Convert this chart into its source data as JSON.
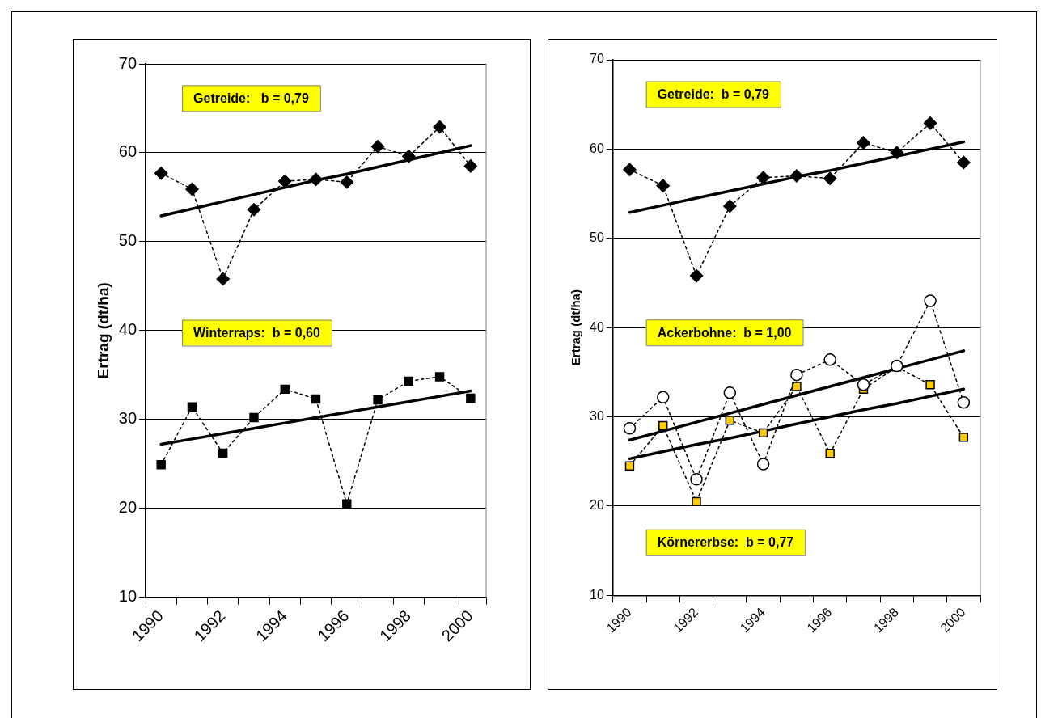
{
  "chart_data": [
    {
      "type": "line",
      "ylabel": "Ertrag (dt/ha)",
      "categories": [
        "1990",
        null,
        "1992",
        null,
        "1994",
        null,
        "1996",
        null,
        "1998",
        null,
        "2000"
      ],
      "ylim": [
        10,
        70
      ],
      "yticks": [
        10,
        20,
        30,
        40,
        50,
        60,
        70
      ],
      "grid": "y",
      "series": [
        {
          "color": "#000000",
          "marker": "diamond",
          "line_style": "dotted",
          "values": [
            57.7,
            55.9,
            45.8,
            53.6,
            56.8,
            57.0,
            56.7,
            60.7,
            59.6,
            62.9,
            58.5
          ]
        },
        {
          "type": "line",
          "color": "#000000",
          "marker": "none",
          "line_style": "solid",
          "values": [
            52.9,
            53.7,
            54.5,
            55.3,
            56.1,
            56.9,
            57.6,
            58.4,
            59.2,
            60.0,
            60.8
          ]
        },
        {
          "color": "#000000",
          "marker": "square",
          "line_style": "dotted",
          "values": [
            24.9,
            31.4,
            26.2,
            30.2,
            33.4,
            32.3,
            20.5,
            32.2,
            34.3,
            34.8,
            32.4
          ]
        },
        {
          "type": "line",
          "color": "#000000",
          "marker": "none",
          "line_style": "solid",
          "values": [
            27.2,
            27.8,
            28.4,
            29.0,
            29.6,
            30.2,
            30.8,
            31.4,
            32.0,
            32.6,
            33.2
          ]
        }
      ],
      "annotations": [
        "Getreide:   b = 0,79",
        "Winterraps:  b = 0,60"
      ]
    },
    {
      "type": "line",
      "ylabel": "Ertrag (dt/ha)",
      "categories": [
        "1990",
        null,
        "1992",
        null,
        "1994",
        null,
        "1996",
        null,
        "1998",
        null,
        "2000"
      ],
      "ylim": [
        10,
        70
      ],
      "yticks": [
        10,
        20,
        30,
        40,
        50,
        60,
        70
      ],
      "grid": "y",
      "series": [
        {
          "color": "#000000",
          "marker": "diamond",
          "line_style": "dotted",
          "values": [
            57.7,
            55.9,
            45.8,
            53.6,
            56.8,
            57.0,
            56.7,
            60.7,
            59.6,
            62.9,
            58.5
          ]
        },
        {
          "type": "line",
          "color": "#000000",
          "marker": "none",
          "line_style": "solid",
          "values": [
            52.9,
            53.7,
            54.5,
            55.3,
            56.1,
            56.9,
            57.6,
            58.4,
            59.2,
            60.0,
            60.8
          ]
        },
        {
          "color": "#ffffff",
          "marker": "circle",
          "line_style": "dotted",
          "values": [
            28.7,
            32.2,
            23.0,
            32.7,
            24.7,
            34.7,
            36.4,
            33.6,
            35.7,
            43.0,
            31.6
          ]
        },
        {
          "type": "line",
          "color": "#000000",
          "marker": "none",
          "line_style": "solid",
          "values": [
            27.4,
            28.4,
            29.4,
            30.4,
            31.4,
            32.4,
            33.4,
            34.4,
            35.4,
            36.4,
            37.4
          ]
        },
        {
          "color": "#ffcc00",
          "marker": "square",
          "line_style": "dotted",
          "values": [
            24.5,
            29.0,
            20.5,
            29.6,
            28.2,
            33.4,
            25.9,
            33.1,
            35.6,
            33.6,
            27.7
          ]
        },
        {
          "type": "line",
          "color": "#000000",
          "marker": "none",
          "line_style": "solid",
          "values": [
            25.3,
            26.1,
            26.9,
            27.6,
            28.4,
            29.2,
            30.0,
            30.8,
            31.5,
            32.3,
            33.1
          ]
        }
      ],
      "annotations": [
        "Getreide:  b = 0,79",
        "Ackerbohne:  b = 1,00",
        "Körnererbse:  b = 0,77"
      ]
    }
  ]
}
